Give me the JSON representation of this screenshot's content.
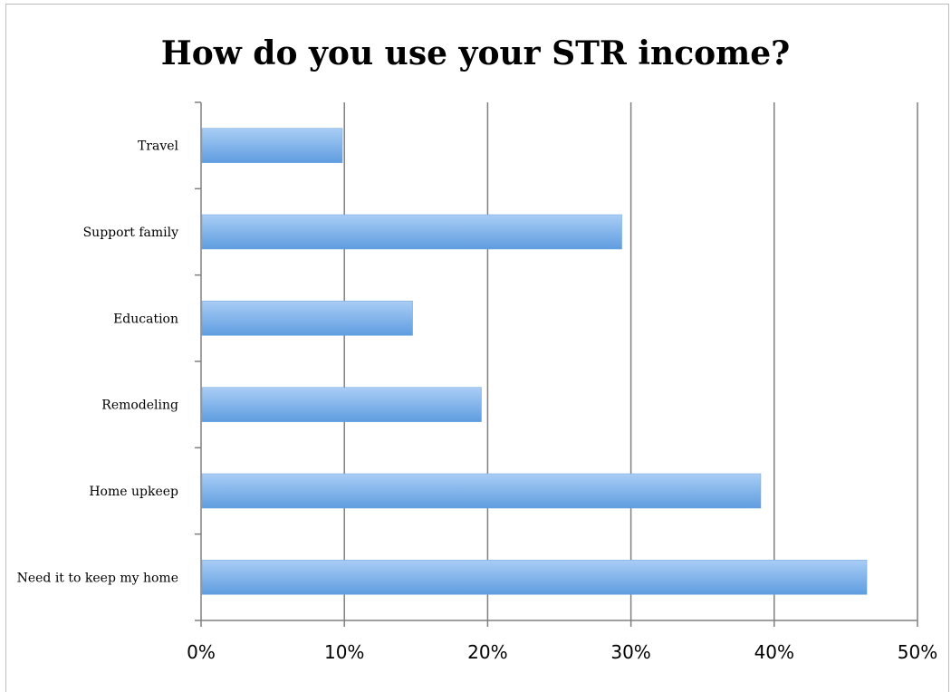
{
  "chart_data": {
    "type": "bar",
    "orientation": "horizontal",
    "title": "How do you use your STR income?",
    "categories": [
      "Travel",
      "Support family",
      "Education",
      "Remodeling",
      "Home upkeep",
      "Need it to keep my home"
    ],
    "values": [
      9.8,
      29.3,
      14.7,
      19.5,
      39.0,
      46.4
    ],
    "value_unit": "%",
    "xlim": [
      0,
      50
    ],
    "x_ticks": [
      "0%",
      "10%",
      "20%",
      "30%",
      "40%",
      "50%"
    ],
    "xlabel": "",
    "ylabel": "",
    "grid": "vertical",
    "legend": "none",
    "bar_color_top": "#a9cdf5",
    "bar_color_bottom": "#5f9de0",
    "grid_color": "#808080"
  }
}
